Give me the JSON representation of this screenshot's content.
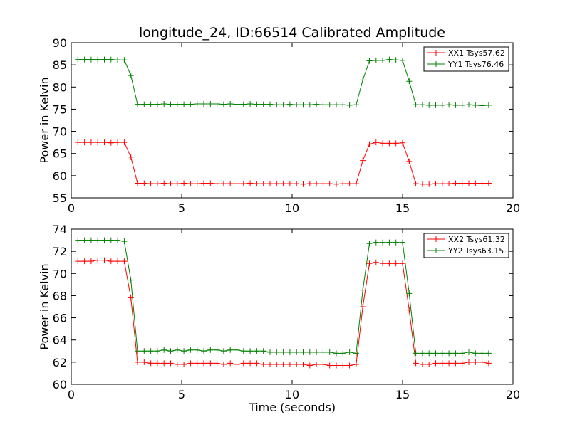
{
  "chart_data": [
    {
      "type": "line",
      "title": "longitude_24, ID:66514 Calibrated Amplitude",
      "xlabel": "",
      "ylabel": "Power in Kelvin",
      "xlim": [
        0,
        20
      ],
      "ylim": [
        55,
        90
      ],
      "xticks": [
        0,
        5,
        10,
        15,
        20
      ],
      "xtick_labels": [
        "0",
        "5",
        "10",
        "15",
        "20"
      ],
      "yticks": [
        55,
        60,
        65,
        70,
        75,
        80,
        85,
        90
      ],
      "ytick_labels": [
        "55",
        "60",
        "65",
        "70",
        "75",
        "80",
        "85",
        "90"
      ],
      "legend_position": "top-right",
      "x": [
        0.3,
        0.6,
        0.9,
        1.2,
        1.5,
        1.8,
        2.1,
        2.4,
        2.7,
        3.0,
        3.3,
        3.6,
        3.9,
        4.2,
        4.5,
        4.8,
        5.1,
        5.4,
        5.7,
        6.0,
        6.3,
        6.6,
        6.9,
        7.2,
        7.5,
        7.8,
        8.1,
        8.4,
        8.7,
        9.0,
        9.3,
        9.6,
        9.9,
        10.2,
        10.5,
        10.8,
        11.1,
        11.4,
        11.7,
        12.0,
        12.3,
        12.6,
        12.9,
        13.2,
        13.5,
        13.8,
        14.1,
        14.4,
        14.7,
        15.0,
        15.3,
        15.6,
        15.9,
        16.2,
        16.5,
        16.8,
        17.1,
        17.4,
        17.7,
        18.0,
        18.3,
        18.6,
        18.9
      ],
      "series": [
        {
          "name": "XX1 Tsys57.62",
          "color": "#ff0000",
          "values": [
            67.5,
            67.5,
            67.5,
            67.5,
            67.5,
            67.4,
            67.5,
            67.5,
            64.2,
            58.3,
            58.3,
            58.2,
            58.2,
            58.3,
            58.2,
            58.2,
            58.3,
            58.2,
            58.2,
            58.3,
            58.3,
            58.2,
            58.2,
            58.2,
            58.2,
            58.2,
            58.3,
            58.2,
            58.2,
            58.2,
            58.2,
            58.2,
            58.2,
            58.2,
            58.1,
            58.2,
            58.2,
            58.2,
            58.2,
            58.1,
            58.2,
            58.2,
            58.2,
            63.4,
            67.1,
            67.5,
            67.3,
            67.3,
            67.3,
            67.4,
            63.2,
            58.2,
            58.1,
            58.1,
            58.2,
            58.2,
            58.2,
            58.3,
            58.3,
            58.3,
            58.3,
            58.3,
            58.3
          ]
        },
        {
          "name": "YY1 Tsys76.46",
          "color": "#008000",
          "values": [
            86.2,
            86.2,
            86.2,
            86.2,
            86.2,
            86.2,
            86.1,
            86.1,
            82.6,
            76.1,
            76.1,
            76.1,
            76.1,
            76.2,
            76.1,
            76.1,
            76.1,
            76.1,
            76.2,
            76.2,
            76.2,
            76.2,
            76.1,
            76.2,
            76.1,
            76.1,
            76.2,
            76.1,
            76.1,
            76.1,
            76.0,
            76.0,
            76.1,
            76.0,
            76.0,
            76.0,
            76.1,
            76.0,
            76.0,
            76.0,
            76.0,
            75.9,
            76.0,
            81.6,
            85.9,
            86.0,
            86.0,
            86.2,
            86.1,
            86.0,
            81.3,
            76.0,
            76.0,
            75.9,
            75.9,
            75.9,
            76.0,
            75.9,
            75.9,
            76.0,
            75.9,
            75.8,
            75.9
          ]
        }
      ]
    },
    {
      "type": "line",
      "title": "",
      "xlabel": "Time (seconds)",
      "ylabel": "Power in Kelvin",
      "xlim": [
        0,
        20
      ],
      "ylim": [
        60,
        74
      ],
      "xticks": [
        0,
        5,
        10,
        15,
        20
      ],
      "xtick_labels": [
        "0",
        "5",
        "10",
        "15",
        "20"
      ],
      "yticks": [
        60,
        62,
        64,
        66,
        68,
        70,
        72,
        74
      ],
      "ytick_labels": [
        "60",
        "62",
        "64",
        "66",
        "68",
        "70",
        "72",
        "74"
      ],
      "legend_position": "top-right",
      "x": [
        0.3,
        0.6,
        0.9,
        1.2,
        1.5,
        1.8,
        2.1,
        2.4,
        2.7,
        3.0,
        3.3,
        3.6,
        3.9,
        4.2,
        4.5,
        4.8,
        5.1,
        5.4,
        5.7,
        6.0,
        6.3,
        6.6,
        6.9,
        7.2,
        7.5,
        7.8,
        8.1,
        8.4,
        8.7,
        9.0,
        9.3,
        9.6,
        9.9,
        10.2,
        10.5,
        10.8,
        11.1,
        11.4,
        11.7,
        12.0,
        12.3,
        12.6,
        12.9,
        13.2,
        13.5,
        13.8,
        14.1,
        14.4,
        14.7,
        15.0,
        15.3,
        15.6,
        15.9,
        16.2,
        16.5,
        16.8,
        17.1,
        17.4,
        17.7,
        18.0,
        18.3,
        18.6,
        18.9
      ],
      "series": [
        {
          "name": "XX2 Tsys61.32",
          "color": "#ff0000",
          "values": [
            71.1,
            71.1,
            71.1,
            71.2,
            71.2,
            71.1,
            71.1,
            71.1,
            67.8,
            62.0,
            62.0,
            61.9,
            61.9,
            61.9,
            61.9,
            61.8,
            61.8,
            61.9,
            61.9,
            61.9,
            61.9,
            61.9,
            61.8,
            61.9,
            61.8,
            61.9,
            61.9,
            61.9,
            61.8,
            61.8,
            61.8,
            61.8,
            61.8,
            61.8,
            61.8,
            61.7,
            61.8,
            61.8,
            61.7,
            61.7,
            61.7,
            61.7,
            61.8,
            67.0,
            70.9,
            71.0,
            70.9,
            70.9,
            70.9,
            70.9,
            66.7,
            61.9,
            61.8,
            61.8,
            61.9,
            61.9,
            61.9,
            61.9,
            61.9,
            62.0,
            62.0,
            62.0,
            61.9
          ]
        },
        {
          "name": "YY2 Tsys63.15",
          "color": "#008000",
          "values": [
            73.0,
            73.0,
            73.0,
            73.0,
            73.0,
            73.0,
            73.0,
            72.9,
            69.4,
            63.0,
            63.0,
            63.0,
            63.0,
            63.1,
            63.0,
            63.1,
            63.0,
            63.1,
            63.1,
            63.0,
            63.1,
            63.1,
            63.0,
            63.1,
            63.1,
            63.0,
            63.0,
            63.0,
            63.0,
            62.9,
            62.9,
            62.9,
            62.9,
            62.9,
            62.9,
            62.9,
            62.9,
            62.9,
            62.9,
            62.8,
            62.8,
            62.9,
            62.8,
            68.5,
            72.7,
            72.8,
            72.8,
            72.8,
            72.8,
            72.8,
            68.2,
            62.8,
            62.8,
            62.8,
            62.8,
            62.8,
            62.8,
            62.8,
            62.8,
            62.9,
            62.8,
            62.8,
            62.8
          ]
        }
      ]
    }
  ]
}
